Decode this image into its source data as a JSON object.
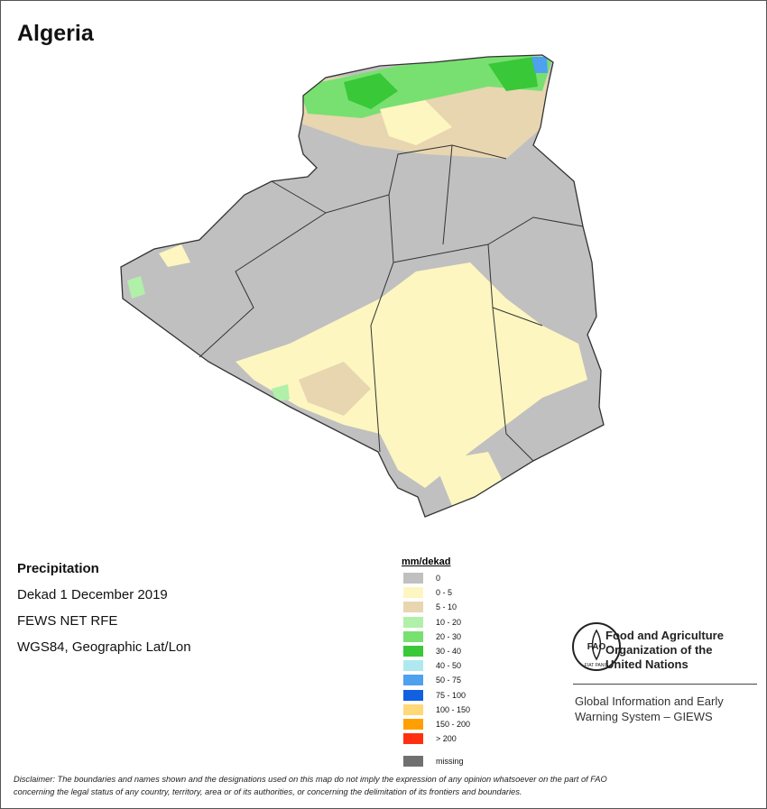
{
  "title": "Algeria",
  "info": [
    "Precipitation",
    "Dekad 1 December 2019",
    "FEWS NET RFE",
    "WGS84, Geographic Lat/Lon"
  ],
  "legend": {
    "title": "mm/dekad",
    "items": [
      {
        "label": "0",
        "color": "#c0c0c0"
      },
      {
        "label": "0 - 5",
        "color": "#fdf6c0"
      },
      {
        "label": "5 - 10",
        "color": "#e8d6b0"
      },
      {
        "label": "10 - 20",
        "color": "#b0f0a8"
      },
      {
        "label": "20 - 30",
        "color": "#78e070"
      },
      {
        "label": "30 - 40",
        "color": "#38c838"
      },
      {
        "label": "40 - 50",
        "color": "#b0e8f0"
      },
      {
        "label": "50 - 75",
        "color": "#50a0f0"
      },
      {
        "label": "75 - 100",
        "color": "#1060e0"
      },
      {
        "label": "100 - 150",
        "color": "#ffd878"
      },
      {
        "label": "150 - 200",
        "color": "#ffa000"
      },
      {
        "label": "> 200",
        "color": "#ff3010"
      }
    ],
    "missing": {
      "label": "missing",
      "color": "#707070"
    }
  },
  "logo": {
    "letters": "FAO",
    "motto": "FIAT PANIS"
  },
  "organization": {
    "name": [
      "Food and Agriculture",
      "Organization of the",
      "United Nations"
    ],
    "system": [
      "Global Information and Early",
      "Warning System – GIEWS"
    ]
  },
  "disclaimer": [
    "Disclaimer: The boundaries and names shown and the designations used on this map do not imply the expression of any opinion whatsoever on the part of FAO",
    "concerning the legal status of any country, territory, area or of its authorities, or concerning the delimitation of its frontiers and boundaries."
  ]
}
